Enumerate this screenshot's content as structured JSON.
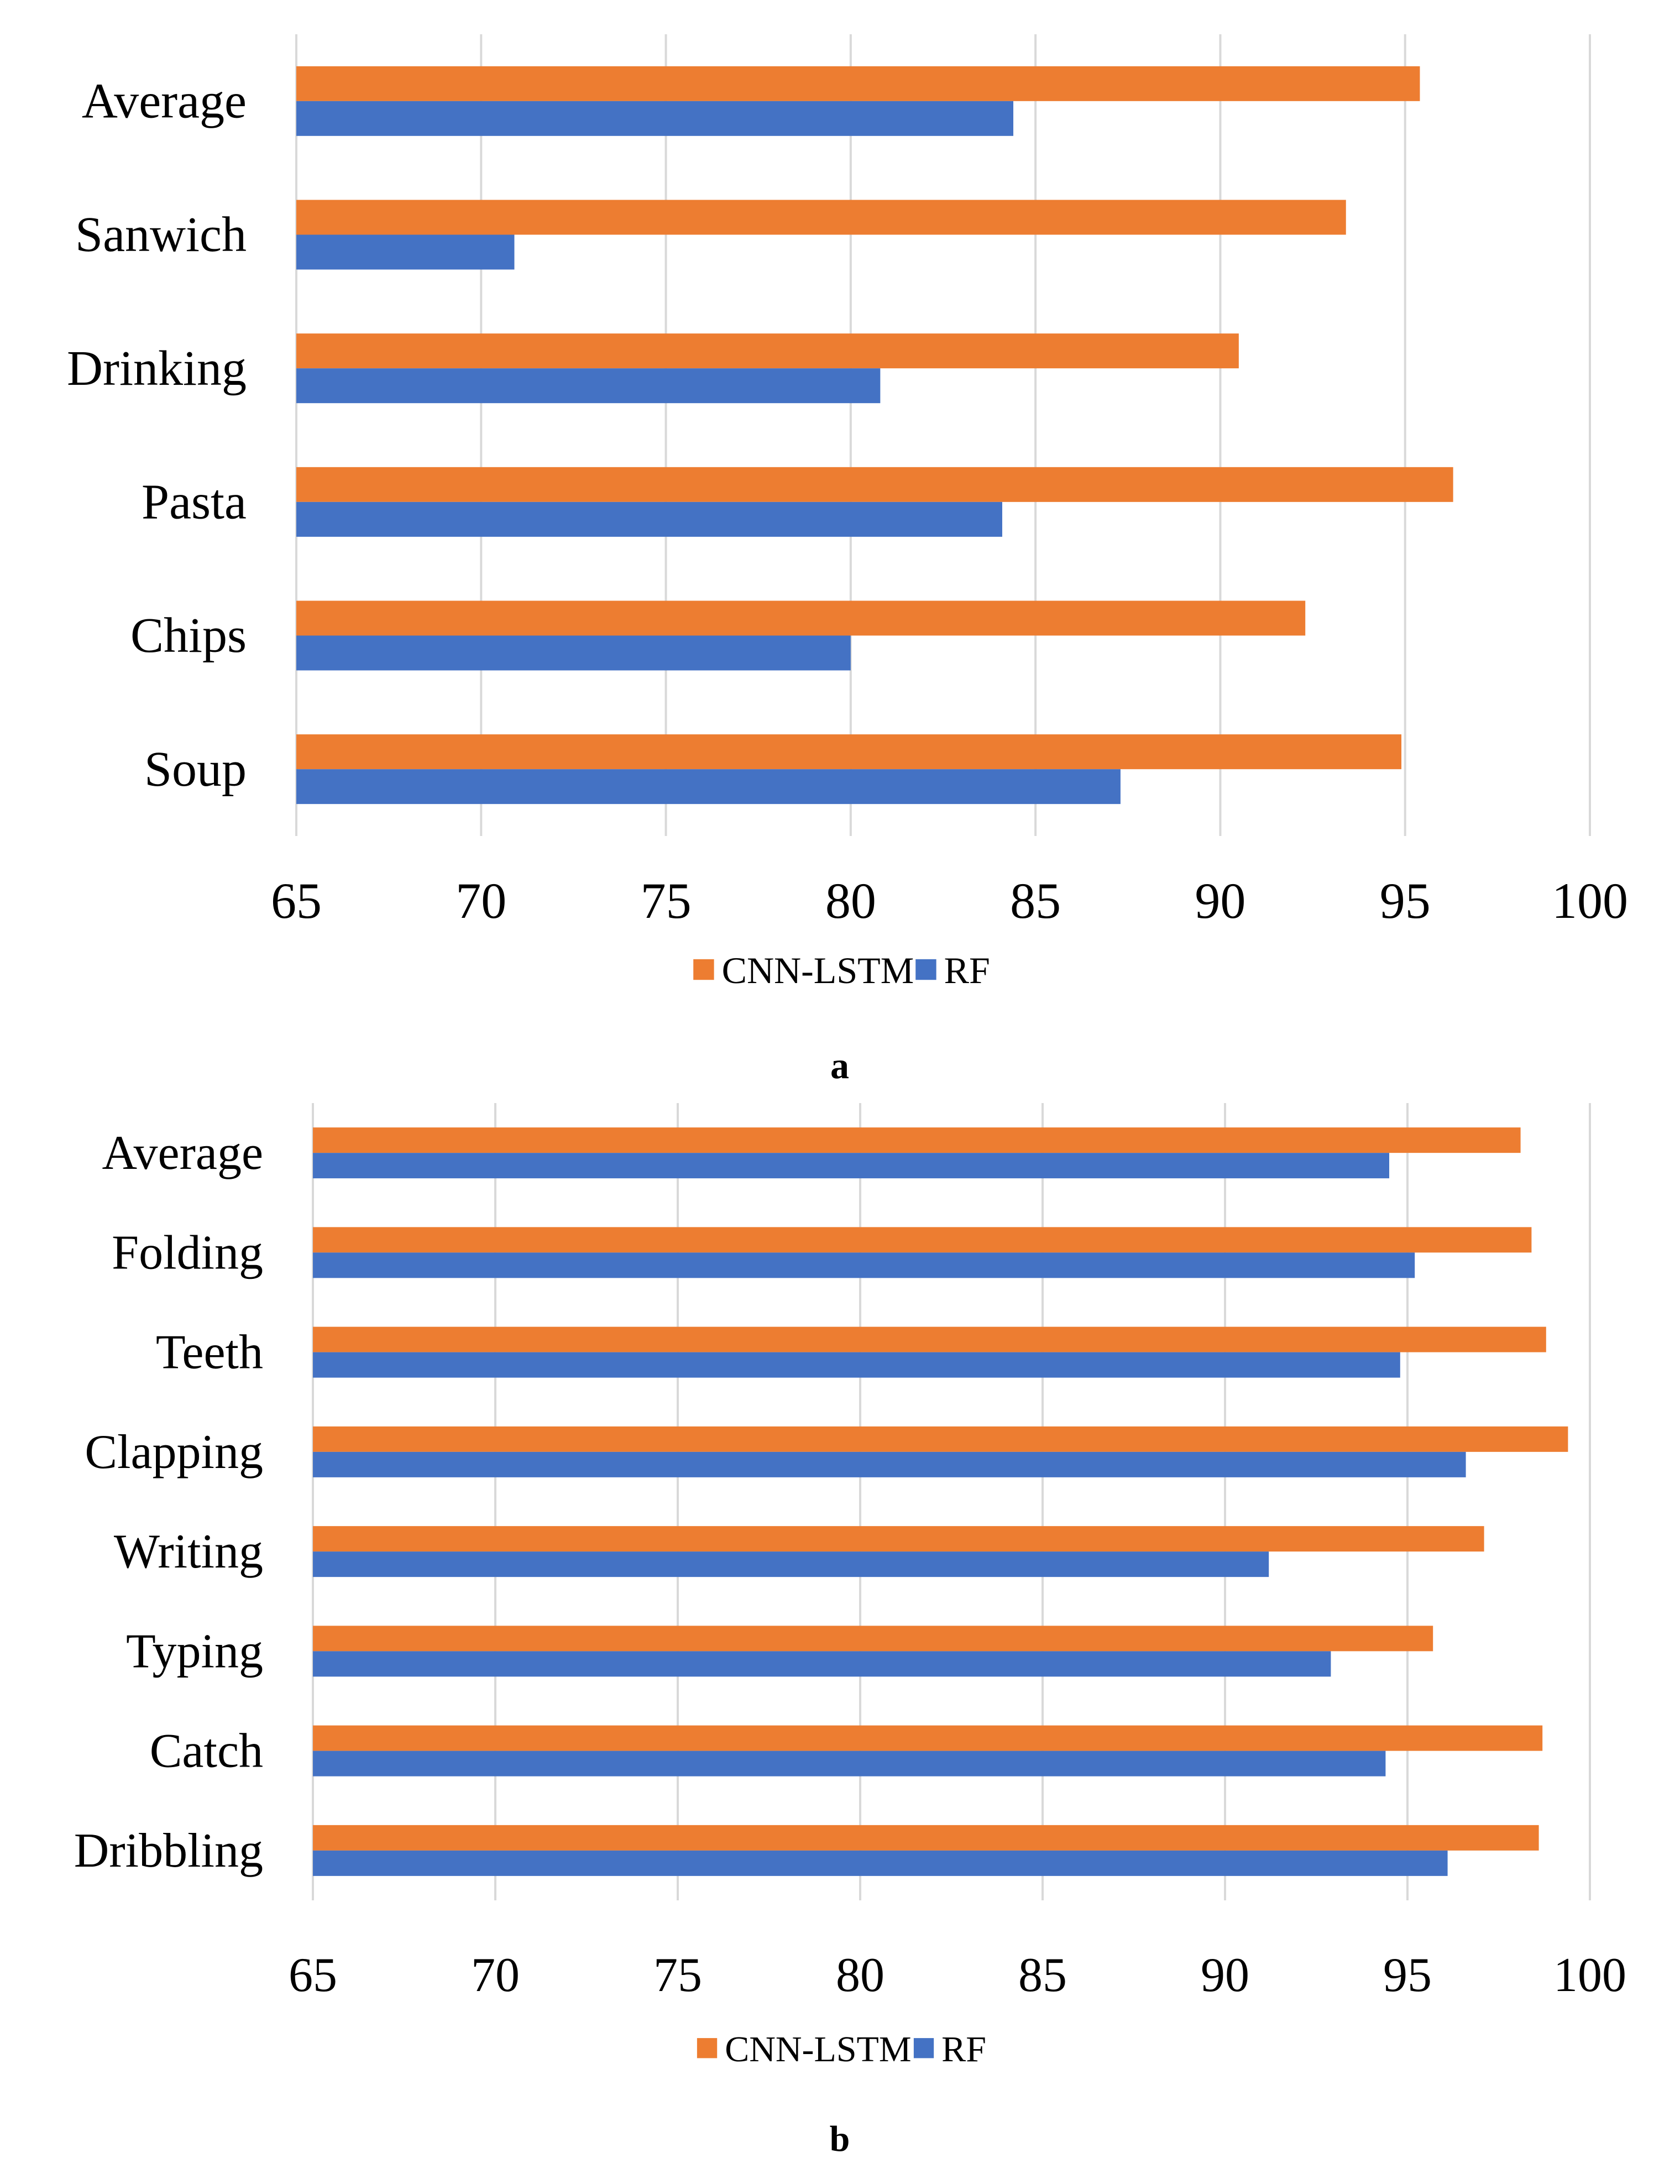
{
  "colors": {
    "cnn_lstm": "#ED7D31",
    "rf": "#4472C4",
    "grid": "#D9D9D9"
  },
  "chart_data": [
    {
      "type": "bar",
      "orientation": "horizontal",
      "panel_label": "a",
      "categories": [
        "Average",
        "Sanwich",
        "Drinking",
        "Pasta",
        "Chips",
        "Soup"
      ],
      "series": [
        {
          "name": "CNN-LSTM",
          "values": [
            95.4,
            93.4,
            90.5,
            96.3,
            92.3,
            94.9
          ]
        },
        {
          "name": "RF",
          "values": [
            84.4,
            70.9,
            80.8,
            84.1,
            80.0,
            87.3
          ]
        }
      ],
      "xlim": [
        65,
        100
      ],
      "xticks": [
        65,
        70,
        75,
        80,
        85,
        90,
        95,
        100
      ],
      "grid": true,
      "legend": "bottom-center"
    },
    {
      "type": "bar",
      "orientation": "horizontal",
      "panel_label": "b",
      "categories": [
        "Average",
        "Folding",
        "Teeth",
        "Clapping",
        "Writing",
        "Typing",
        "Catch",
        "Dribbling"
      ],
      "series": [
        {
          "name": "CNN-LSTM",
          "values": [
            98.1,
            98.4,
            98.8,
            99.4,
            97.1,
            95.7,
            98.7,
            98.6
          ]
        },
        {
          "name": "RF",
          "values": [
            94.5,
            95.2,
            94.8,
            96.6,
            91.2,
            92.9,
            94.4,
            96.1
          ]
        }
      ],
      "xlim": [
        65,
        100
      ],
      "xticks": [
        65,
        70,
        75,
        80,
        85,
        90,
        95,
        100
      ],
      "grid": true,
      "legend": "bottom-center"
    }
  ]
}
